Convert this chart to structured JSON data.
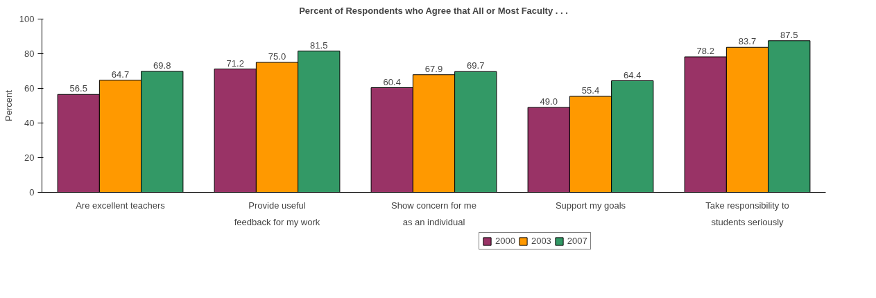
{
  "chart_data": {
    "type": "bar",
    "title": "Percent of Respondents who Agree that All or Most Faculty . . .",
    "ylabel": "Percent",
    "categories": [
      "Are excellent teachers",
      "Provide useful\nfeedback for my work",
      "Show concern for me\nas an individual",
      "Support my goals",
      "Take responsibility to\nstudents seriously"
    ],
    "series": [
      {
        "name": "2000",
        "color": "#993366",
        "values": [
          56.5,
          71.2,
          60.4,
          49.0,
          78.2
        ],
        "value_labels": [
          "56.5",
          "71.2",
          "60.4",
          "49.0",
          "78.2"
        ]
      },
      {
        "name": "2003",
        "color": "#ff9900",
        "values": [
          64.7,
          75.0,
          67.9,
          55.4,
          83.7
        ],
        "value_labels": [
          "64.7",
          "75.0",
          "67.9",
          "55.4",
          "83.7"
        ]
      },
      {
        "name": "2007",
        "color": "#339966",
        "values": [
          69.8,
          81.5,
          69.7,
          64.4,
          87.5
        ],
        "value_labels": [
          "69.8",
          "81.5",
          "69.7",
          "64.4",
          "87.5"
        ]
      }
    ],
    "ylim": [
      0,
      100
    ],
    "yticks": [
      0,
      20,
      40,
      60,
      80,
      100
    ],
    "grid": false,
    "legend": "bottom"
  }
}
